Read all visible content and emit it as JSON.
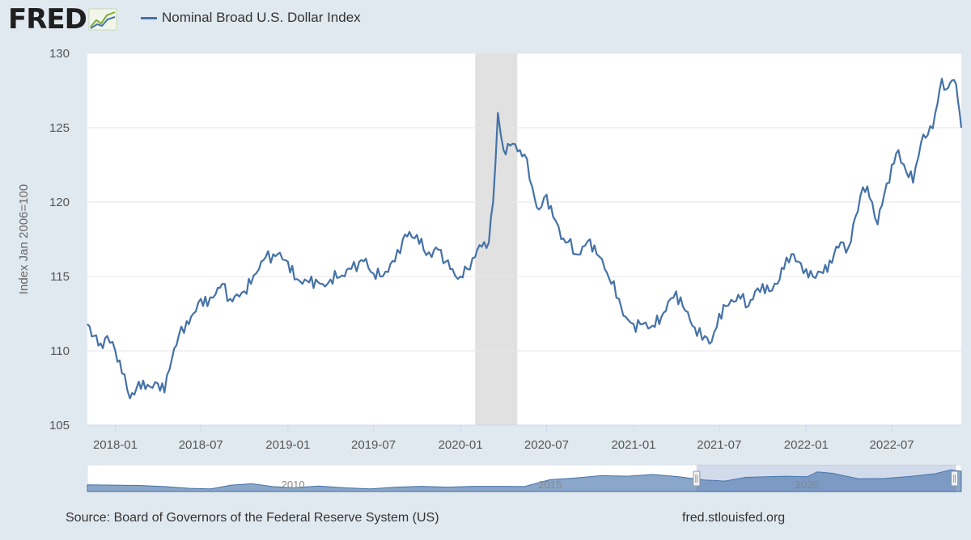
{
  "header": {
    "logo_text": "FRED",
    "legend_label": "Nominal Broad U.S. Dollar Index"
  },
  "footer": {
    "source": "Source: Board of Governors of the Federal Reserve System (US)",
    "url": "fred.stlouisfed.org"
  },
  "colors": {
    "series": "#4572a7",
    "background": "#e1e9f0",
    "plot": "#ffffff",
    "recession": "#e1e1e1",
    "navigator_fill": "#8aa6c8"
  },
  "chart_data": {
    "type": "line",
    "ylabel": "Index Jan 2006=100",
    "ylim": [
      105,
      130
    ],
    "yticks": [
      105,
      110,
      115,
      120,
      125,
      130
    ],
    "xlim": [
      "2017-11-03",
      "2022-11-25"
    ],
    "xticks": [
      "2018-01",
      "2018-07",
      "2019-01",
      "2019-07",
      "2020-01",
      "2020-07",
      "2021-01",
      "2021-07",
      "2022-01",
      "2022-07"
    ],
    "grid": true,
    "legend": "top-left",
    "recession": {
      "start": "2020-02-01",
      "end": "2020-04-30"
    },
    "series": [
      {
        "name": "Nominal Broad U.S. Dollar Index",
        "points": [
          [
            "2017-11-03",
            111.8
          ],
          [
            "2017-11-17",
            111.0
          ],
          [
            "2017-12-01",
            110.5
          ],
          [
            "2017-12-15",
            111.0
          ],
          [
            "2018-01-01",
            110.0
          ],
          [
            "2018-01-15",
            108.5
          ],
          [
            "2018-02-01",
            106.8
          ],
          [
            "2018-02-15",
            107.5
          ],
          [
            "2018-03-01",
            108.0
          ],
          [
            "2018-03-15",
            107.6
          ],
          [
            "2018-04-01",
            107.8
          ],
          [
            "2018-04-15",
            107.2
          ],
          [
            "2018-05-01",
            109.5
          ],
          [
            "2018-05-15",
            111.0
          ],
          [
            "2018-06-01",
            112.0
          ],
          [
            "2018-06-15",
            112.5
          ],
          [
            "2018-07-01",
            113.5
          ],
          [
            "2018-07-15",
            113.0
          ],
          [
            "2018-08-01",
            113.8
          ],
          [
            "2018-08-15",
            114.5
          ],
          [
            "2018-09-01",
            113.5
          ],
          [
            "2018-09-15",
            113.8
          ],
          [
            "2018-10-01",
            114.0
          ],
          [
            "2018-10-15",
            114.5
          ],
          [
            "2018-11-01",
            115.5
          ],
          [
            "2018-11-15",
            116.3
          ],
          [
            "2018-12-01",
            116.5
          ],
          [
            "2018-12-15",
            116.6
          ],
          [
            "2019-01-01",
            116.0
          ],
          [
            "2019-01-15",
            114.8
          ],
          [
            "2019-02-01",
            114.5
          ],
          [
            "2019-02-15",
            114.6
          ],
          [
            "2019-03-01",
            114.8
          ],
          [
            "2019-03-15",
            114.5
          ],
          [
            "2019-04-01",
            114.8
          ],
          [
            "2019-04-15",
            114.9
          ],
          [
            "2019-05-01",
            115.0
          ],
          [
            "2019-05-15",
            115.5
          ],
          [
            "2019-06-01",
            116.0
          ],
          [
            "2019-06-15",
            116.2
          ],
          [
            "2019-07-01",
            115.2
          ],
          [
            "2019-07-15",
            115.0
          ],
          [
            "2019-08-01",
            115.3
          ],
          [
            "2019-08-15",
            116.0
          ],
          [
            "2019-09-01",
            117.5
          ],
          [
            "2019-09-15",
            118.0
          ],
          [
            "2019-10-01",
            117.8
          ],
          [
            "2019-10-15",
            116.8
          ],
          [
            "2019-11-01",
            116.3
          ],
          [
            "2019-11-15",
            116.8
          ],
          [
            "2019-12-01",
            116.0
          ],
          [
            "2019-12-15",
            115.5
          ],
          [
            "2020-01-01",
            115.0
          ],
          [
            "2020-01-15",
            115.5
          ],
          [
            "2020-02-01",
            116.3
          ],
          [
            "2020-02-15",
            117.0
          ],
          [
            "2020-03-01",
            117.3
          ],
          [
            "2020-03-10",
            120.0
          ],
          [
            "2020-03-20",
            126.0
          ],
          [
            "2020-04-01",
            123.5
          ],
          [
            "2020-04-15",
            123.8
          ],
          [
            "2020-05-01",
            123.4
          ],
          [
            "2020-05-15",
            123.2
          ],
          [
            "2020-06-01",
            121.0
          ],
          [
            "2020-06-15",
            119.5
          ],
          [
            "2020-07-01",
            120.5
          ],
          [
            "2020-07-15",
            119.0
          ],
          [
            "2020-08-01",
            117.5
          ],
          [
            "2020-08-15",
            117.3
          ],
          [
            "2020-09-01",
            116.5
          ],
          [
            "2020-09-15",
            117.0
          ],
          [
            "2020-10-01",
            117.5
          ],
          [
            "2020-10-15",
            116.5
          ],
          [
            "2020-11-01",
            115.5
          ],
          [
            "2020-11-15",
            114.5
          ],
          [
            "2020-12-01",
            113.5
          ],
          [
            "2020-12-15",
            112.3
          ],
          [
            "2021-01-01",
            111.8
          ],
          [
            "2021-01-15",
            111.8
          ],
          [
            "2021-02-01",
            111.5
          ],
          [
            "2021-02-15",
            111.6
          ],
          [
            "2021-03-01",
            112.3
          ],
          [
            "2021-03-15",
            113.3
          ],
          [
            "2021-04-01",
            114.0
          ],
          [
            "2021-04-15",
            113.0
          ],
          [
            "2021-05-01",
            112.0
          ],
          [
            "2021-05-15",
            111.0
          ],
          [
            "2021-06-01",
            111.0
          ],
          [
            "2021-06-15",
            110.6
          ],
          [
            "2021-07-01",
            112.5
          ],
          [
            "2021-07-15",
            113.0
          ],
          [
            "2021-08-01",
            113.3
          ],
          [
            "2021-08-15",
            113.5
          ],
          [
            "2021-09-01",
            113.0
          ],
          [
            "2021-09-15",
            114.0
          ],
          [
            "2021-10-01",
            114.5
          ],
          [
            "2021-10-15",
            114.0
          ],
          [
            "2021-11-01",
            114.5
          ],
          [
            "2021-11-15",
            115.5
          ],
          [
            "2021-12-01",
            116.5
          ],
          [
            "2021-12-15",
            116.0
          ],
          [
            "2022-01-01",
            115.5
          ],
          [
            "2022-01-15",
            115.0
          ],
          [
            "2022-02-01",
            115.3
          ],
          [
            "2022-02-15",
            115.3
          ],
          [
            "2022-03-01",
            116.5
          ],
          [
            "2022-03-15",
            117.3
          ],
          [
            "2022-04-01",
            117.0
          ],
          [
            "2022-04-15",
            119.0
          ],
          [
            "2022-05-01",
            121.0
          ],
          [
            "2022-05-15",
            120.3
          ],
          [
            "2022-06-01",
            118.5
          ],
          [
            "2022-06-15",
            120.5
          ],
          [
            "2022-07-01",
            122.5
          ],
          [
            "2022-07-15",
            123.5
          ],
          [
            "2022-08-01",
            122.0
          ],
          [
            "2022-08-15",
            121.3
          ],
          [
            "2022-09-01",
            124.0
          ],
          [
            "2022-09-15",
            124.5
          ],
          [
            "2022-10-01",
            126.0
          ],
          [
            "2022-10-15",
            128.3
          ],
          [
            "2022-10-25",
            127.6
          ],
          [
            "2022-11-01",
            128.0
          ],
          [
            "2022-11-10",
            128.2
          ],
          [
            "2022-11-18",
            126.8
          ],
          [
            "2022-11-25",
            125.0
          ]
        ]
      }
    ],
    "navigator": {
      "xticks": [
        "2010",
        "2015",
        "2020"
      ],
      "range": [
        2006,
        2023
      ],
      "selected": [
        2017.85,
        2022.9
      ],
      "points": [
        [
          2006.0,
          101.5
        ],
        [
          2006.5,
          101.0
        ],
        [
          2007.0,
          100.5
        ],
        [
          2007.5,
          98.5
        ],
        [
          2008.0,
          95.5
        ],
        [
          2008.4,
          94.5
        ],
        [
          2008.8,
          101.0
        ],
        [
          2009.2,
          103.5
        ],
        [
          2009.6,
          98.5
        ],
        [
          2010.0,
          96.5
        ],
        [
          2010.5,
          99.5
        ],
        [
          2011.0,
          96.5
        ],
        [
          2011.5,
          94.5
        ],
        [
          2012.0,
          97.5
        ],
        [
          2012.5,
          99.0
        ],
        [
          2013.0,
          97.5
        ],
        [
          2013.5,
          99.0
        ],
        [
          2014.0,
          99.0
        ],
        [
          2014.5,
          98.5
        ],
        [
          2015.0,
          110.5
        ],
        [
          2015.5,
          113.5
        ],
        [
          2016.0,
          117.5
        ],
        [
          2016.5,
          116.5
        ],
        [
          2017.0,
          119.5
        ],
        [
          2017.5,
          115.5
        ],
        [
          2018.0,
          110.0
        ],
        [
          2018.4,
          108.0
        ],
        [
          2018.8,
          114.5
        ],
        [
          2019.2,
          115.5
        ],
        [
          2019.6,
          116.5
        ],
        [
          2020.0,
          115.5
        ],
        [
          2020.2,
          124.0
        ],
        [
          2020.5,
          121.5
        ],
        [
          2021.0,
          112.0
        ],
        [
          2021.5,
          112.5
        ],
        [
          2022.0,
          116.0
        ],
        [
          2022.5,
          121.0
        ],
        [
          2022.8,
          127.5
        ],
        [
          2023.0,
          125.0
        ]
      ]
    }
  }
}
